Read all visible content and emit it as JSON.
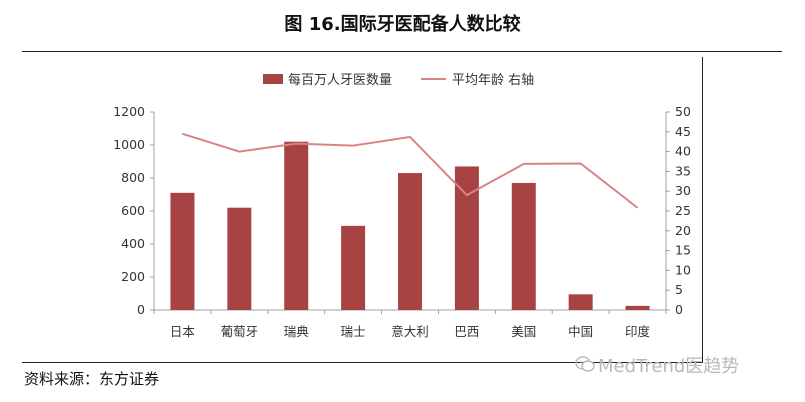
{
  "header": {
    "title": "图 16.国际牙医配备人数比较"
  },
  "footer": {
    "source": "资料来源：东方证券",
    "watermark": "MedTrend医趋势"
  },
  "colors": {
    "bar": "#a84343",
    "line": "#d98484",
    "axis": "#a0a0a0"
  },
  "chart_data": {
    "type": "bar",
    "categories": [
      "日本",
      "葡萄牙",
      "瑞典",
      "瑞士",
      "意大利",
      "巴西",
      "美国",
      "中国",
      "印度"
    ],
    "series": [
      {
        "name": "每百万人牙医数量",
        "type": "bar",
        "axis": "left",
        "values": [
          710,
          620,
          1020,
          510,
          830,
          870,
          770,
          95,
          25
        ]
      },
      {
        "name": "平均年龄 右轴",
        "type": "line",
        "axis": "right",
        "values": [
          44.5,
          40,
          42,
          41.5,
          43.7,
          29,
          36.9,
          37,
          25.8
        ]
      }
    ],
    "ylim": [
      0,
      1200
    ],
    "yticks": [
      "0",
      "200",
      "400",
      "600",
      "800",
      "1000",
      "1200"
    ],
    "y2lim": [
      0,
      50
    ],
    "y2ticks": [
      "0",
      "5",
      "10",
      "15",
      "20",
      "25",
      "30",
      "35",
      "40",
      "45",
      "50"
    ],
    "legend_position": "top-center",
    "grid": false
  }
}
